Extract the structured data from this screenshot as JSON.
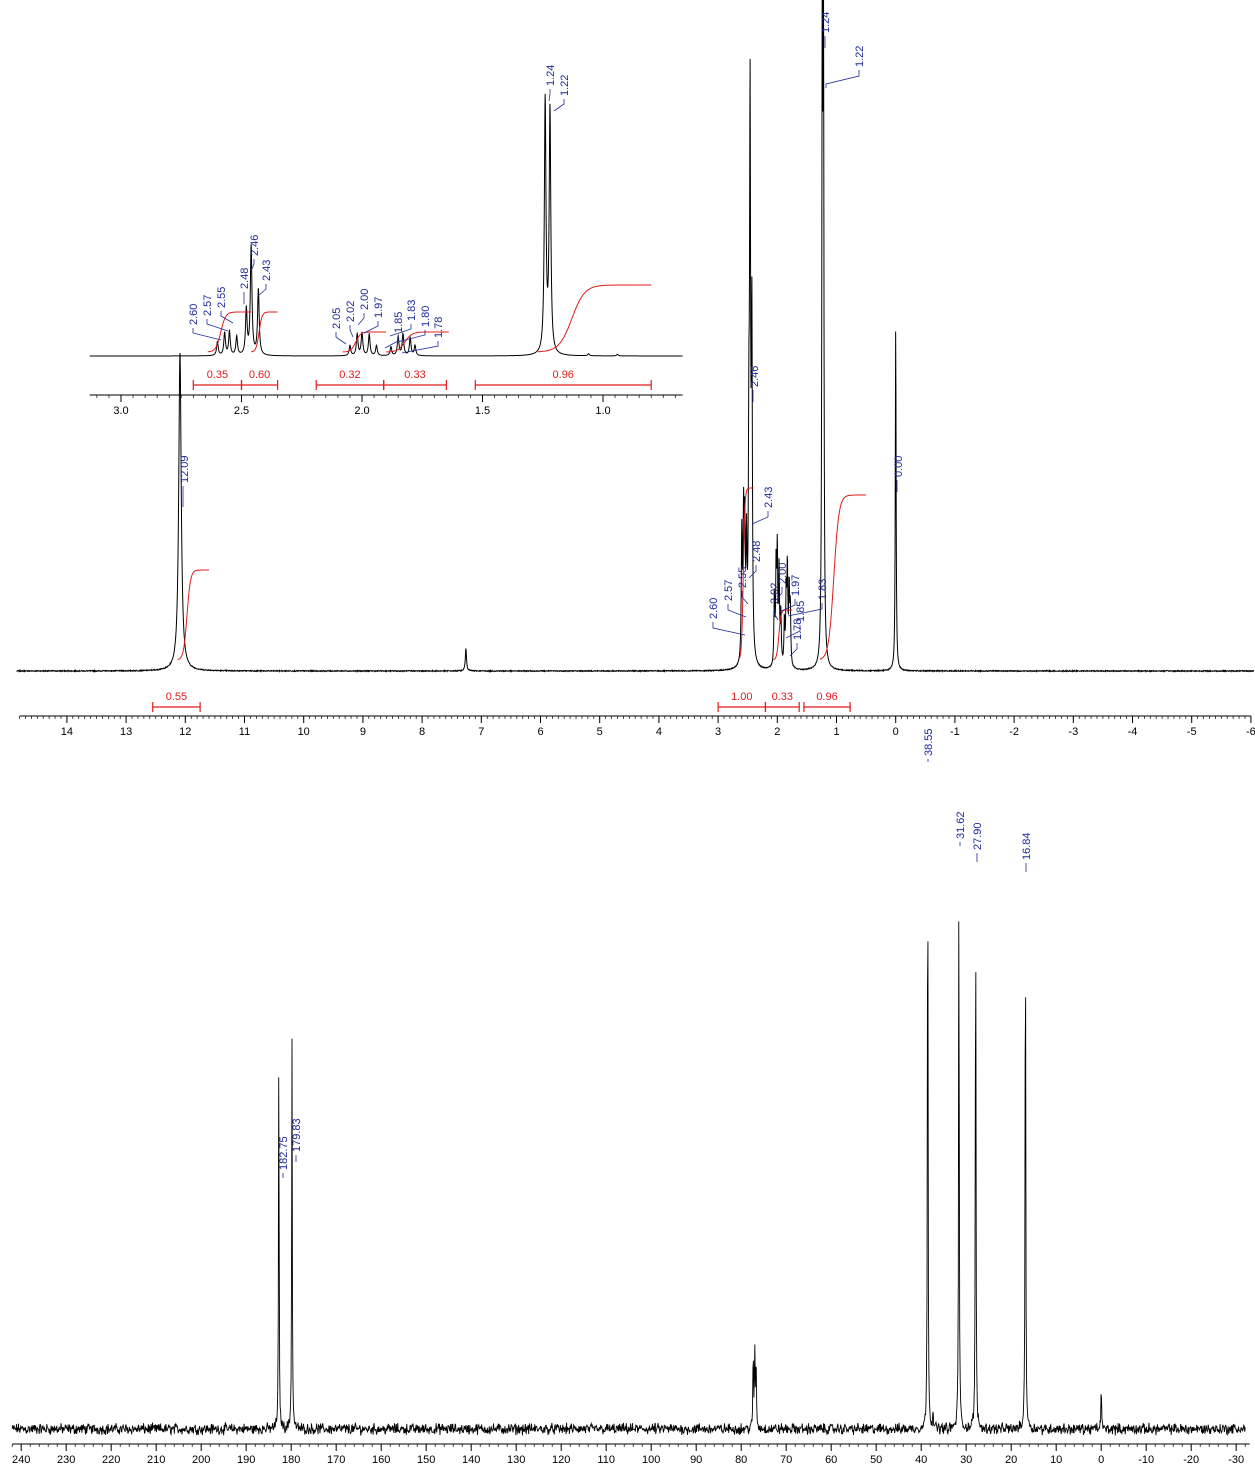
{
  "chart_data": [
    {
      "type": "line",
      "id": "h1_main",
      "xaxis": {
        "reversed": true,
        "xlim": [
          14.8,
          -6.0
        ],
        "major_ticks": [
          14,
          13,
          12,
          11,
          10,
          9,
          8,
          7,
          6,
          5,
          4,
          3,
          2,
          1,
          0,
          -1,
          -2,
          -3,
          -4,
          -5,
          -6
        ]
      },
      "ylim": [
        0,
        1.0
      ],
      "peaks": [
        {
          "x": 12.09,
          "y": 0.5,
          "width": 0.025
        },
        {
          "x": 7.26,
          "y": 0.035,
          "width": 0.012
        },
        {
          "x": 2.6,
          "y": 0.2,
          "width": 0.01
        },
        {
          "x": 2.57,
          "y": 0.21,
          "width": 0.01
        },
        {
          "x": 2.55,
          "y": 0.19,
          "width": 0.01
        },
        {
          "x": 2.52,
          "y": 0.17,
          "width": 0.01
        },
        {
          "x": 2.48,
          "y": 0.3,
          "width": 0.01
        },
        {
          "x": 2.46,
          "y": 0.84,
          "width": 0.01
        },
        {
          "x": 2.43,
          "y": 0.52,
          "width": 0.01
        },
        {
          "x": 2.05,
          "y": 0.11,
          "width": 0.009
        },
        {
          "x": 2.02,
          "y": 0.15,
          "width": 0.009
        },
        {
          "x": 2.0,
          "y": 0.17,
          "width": 0.009
        },
        {
          "x": 1.97,
          "y": 0.15,
          "width": 0.009
        },
        {
          "x": 1.94,
          "y": 0.08,
          "width": 0.009
        },
        {
          "x": 1.88,
          "y": 0.07,
          "width": 0.009
        },
        {
          "x": 1.85,
          "y": 0.11,
          "width": 0.009
        },
        {
          "x": 1.83,
          "y": 0.15,
          "width": 0.009
        },
        {
          "x": 1.8,
          "y": 0.12,
          "width": 0.009
        },
        {
          "x": 1.78,
          "y": 0.09,
          "width": 0.009
        },
        {
          "x": 1.24,
          "y": 1.0,
          "width": 0.009
        },
        {
          "x": 1.22,
          "y": 0.95,
          "width": 0.009
        },
        {
          "x": 0.0,
          "y": 0.54,
          "width": 0.008
        }
      ],
      "peak_labels": [
        "12.09",
        "2.60",
        "2.57",
        "2.55",
        "2.48",
        "2.46",
        "2.43",
        "2.00",
        "2.02",
        "1.97",
        "1.85",
        "1.78",
        "1.83",
        "1.24",
        "1.22",
        "0.00"
      ],
      "integrals": [
        {
          "from": 12.55,
          "to": 11.75,
          "value": "0.55"
        },
        {
          "from": 3.0,
          "to": 2.2,
          "value": "1.00"
        },
        {
          "from": 2.2,
          "to": 1.63,
          "value": "0.33"
        },
        {
          "from": 1.55,
          "to": 0.77,
          "value": "0.96"
        }
      ]
    },
    {
      "type": "line",
      "id": "h1_inset",
      "xaxis": {
        "reversed": true,
        "xlim": [
          3.13,
          0.67
        ],
        "major_ticks": [
          3.0,
          2.5,
          2.0,
          1.5,
          1.0
        ],
        "major_labels": [
          "3.0",
          "2.5",
          "2.0",
          "1.5",
          "1.0"
        ]
      },
      "peak_labels": [
        "2.60",
        "2.57",
        "2.55",
        "2.48",
        "2.46",
        "2.43",
        "2.05",
        "2.02",
        "2.00",
        "1.97",
        "1.85",
        "1.83",
        "1.80",
        "1.78",
        "1.24",
        "1.22"
      ],
      "integrals": [
        {
          "from": 2.7,
          "to": 2.5,
          "value": "0.35"
        },
        {
          "from": 2.5,
          "to": 2.35,
          "value": "0.60"
        },
        {
          "from": 2.19,
          "to": 1.91,
          "value": "0.32"
        },
        {
          "from": 1.91,
          "to": 1.65,
          "value": "0.33"
        },
        {
          "from": 1.53,
          "to": 0.8,
          "value": "0.96"
        }
      ]
    },
    {
      "type": "line",
      "id": "c13",
      "xaxis": {
        "reversed": true,
        "xlim": [
          242,
          -33
        ],
        "major_ticks": [
          240,
          230,
          220,
          210,
          200,
          190,
          180,
          170,
          160,
          150,
          140,
          130,
          120,
          110,
          100,
          90,
          80,
          70,
          60,
          50,
          40,
          30,
          20,
          10,
          0,
          -10,
          -20,
          -30
        ]
      },
      "ylim": [
        0,
        1.0
      ],
      "peaks": [
        {
          "x": 182.75,
          "y": 0.57
        },
        {
          "x": 179.83,
          "y": 0.59
        },
        {
          "x": 77.33,
          "y": 0.12
        },
        {
          "x": 77.0,
          "y": 0.125
        },
        {
          "x": 76.7,
          "y": 0.12
        },
        {
          "x": 38.55,
          "y": 1.0
        },
        {
          "x": 37.4,
          "y": 0.03
        },
        {
          "x": 31.62,
          "y": 0.89
        },
        {
          "x": 27.9,
          "y": 0.87
        },
        {
          "x": 16.84,
          "y": 0.87
        },
        {
          "x": 0.0,
          "y": 0.07
        }
      ],
      "peak_labels": [
        "182.75",
        "179.83",
        "38.55",
        "31.62",
        "27.90",
        "16.84"
      ]
    }
  ]
}
